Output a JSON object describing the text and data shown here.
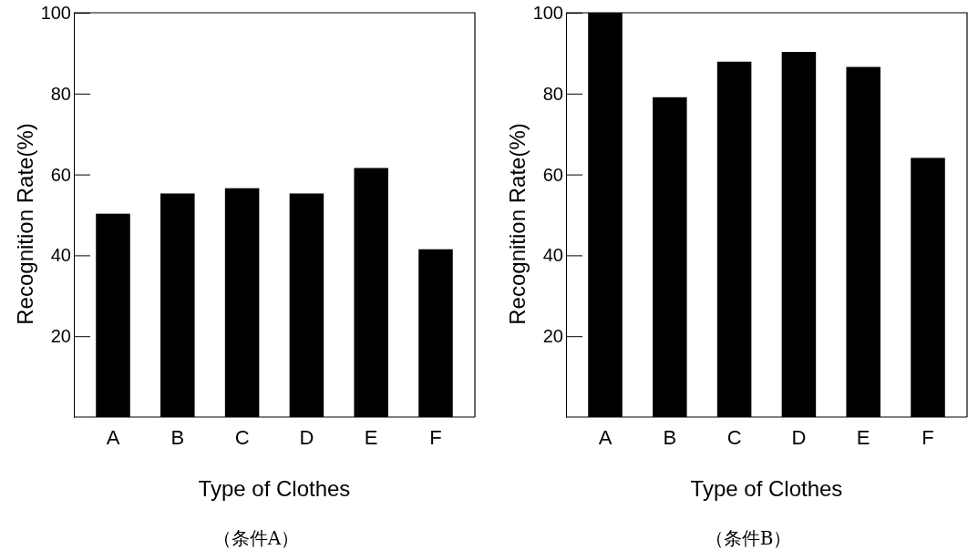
{
  "chart_data": [
    {
      "type": "bar",
      "title": "（条件A）",
      "xlabel": "Type of Clothes",
      "ylabel": "Recognition Rate(%)",
      "categories": [
        "A",
        "B",
        "C",
        "D",
        "E",
        "F"
      ],
      "values": [
        50.3,
        55.3,
        56.6,
        55.3,
        61.6,
        41.5
      ],
      "color": "#000000",
      "ylim": [
        0,
        100
      ],
      "yticks": [
        20,
        40,
        60,
        80,
        100
      ],
      "grid": false
    },
    {
      "type": "bar",
      "title": "（条件B）",
      "xlabel": "Type of Clothes",
      "ylabel": "Recognition Rate(%)",
      "categories": [
        "A",
        "B",
        "C",
        "D",
        "E",
        "F"
      ],
      "values": [
        100,
        79.1,
        87.9,
        90.3,
        86.6,
        64.1
      ],
      "color": "#000000",
      "ylim": [
        0,
        100
      ],
      "yticks": [
        20,
        40,
        60,
        80,
        100
      ],
      "grid": false
    }
  ]
}
